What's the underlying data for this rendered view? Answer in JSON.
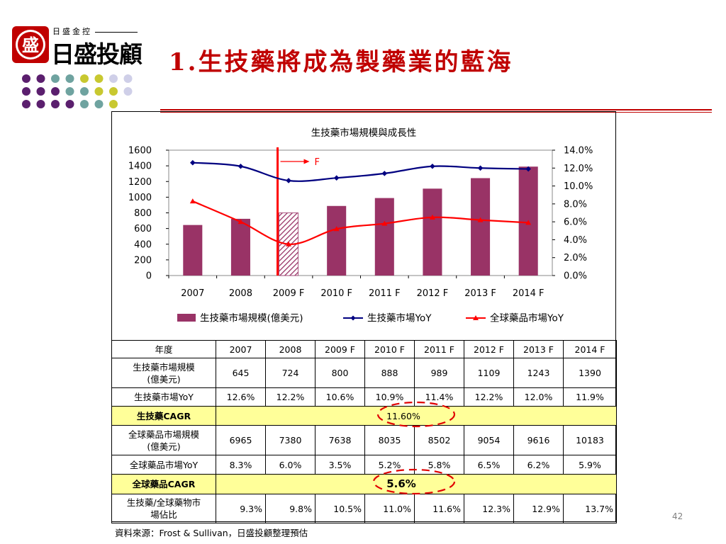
{
  "logo": {
    "small_text": "日盛金控",
    "big_text": "日盛投顧",
    "seal_char": "盛"
  },
  "colors": {
    "title_red": "#c00000",
    "bar": "#993366",
    "biotech_line": "#000080",
    "global_line": "#ff0000",
    "divider": "#ff0000",
    "cagr_fill": "#ffff99",
    "dot_purple": "#5b1f6e",
    "dot_teal": "#6fa3a0",
    "dot_yellow": "#c8c830",
    "dot_lavender": "#cfcfe8"
  },
  "title": "1.生技藥將成為製藥業的藍海",
  "chart_data": {
    "type": "bar",
    "title": "生技藥市場規模與成長性",
    "categories": [
      "2007",
      "2008",
      "2009 F",
      "2010 F",
      "2011 F",
      "2012 F",
      "2013 F",
      "2014 F"
    ],
    "series": [
      {
        "name": "生技藥市場規模(億美元)",
        "type": "bar",
        "axis": "left",
        "values": [
          645,
          724,
          800,
          888,
          989,
          1109,
          1243,
          1390
        ],
        "hatched_index": 2
      },
      {
        "name": "生技藥市場YoY",
        "type": "line",
        "axis": "right",
        "marker": "diamond",
        "values": [
          12.6,
          12.2,
          10.6,
          10.9,
          11.4,
          12.2,
          12.0,
          11.9
        ]
      },
      {
        "name": "全球藥品市場YoY",
        "type": "line",
        "axis": "right",
        "marker": "triangle",
        "values": [
          8.3,
          6.0,
          3.5,
          5.2,
          5.8,
          6.5,
          6.2,
          5.9
        ]
      }
    ],
    "ylim": [
      0,
      1600
    ],
    "yticks": [
      "0",
      "200",
      "400",
      "600",
      "800",
      "1000",
      "1200",
      "1400",
      "1600"
    ],
    "y2lim": [
      0,
      14
    ],
    "y2ticks": [
      "0.0%",
      "2.0%",
      "4.0%",
      "6.0%",
      "8.0%",
      "10.0%",
      "12.0%",
      "14.0%"
    ],
    "forecast_label": "F",
    "legend_position": "bottom",
    "grid": false
  },
  "table": {
    "header": [
      "年度",
      "2007",
      "2008",
      "2009 F",
      "2010 F",
      "2011 F",
      "2012 F",
      "2013 F",
      "2014 F"
    ],
    "rows": [
      {
        "label_l1": "生技藥市場規模",
        "label_l2": "(億美元)",
        "values": [
          "645",
          "724",
          "800",
          "888",
          "989",
          "1109",
          "1243",
          "1390"
        ]
      },
      {
        "label_l1": "生技藥市場YoY",
        "values": [
          "12.6%",
          "12.2%",
          "10.6%",
          "10.9%",
          "11.4%",
          "12.2%",
          "12.0%",
          "11.9%"
        ]
      },
      {
        "cagr": true,
        "label_l1": "生技藥CAGR",
        "value": "11.60%"
      },
      {
        "label_l1": "全球藥品市場規模",
        "label_l2": "(億美元)",
        "values": [
          "6965",
          "7380",
          "7638",
          "8035",
          "8502",
          "9054",
          "9616",
          "10183"
        ]
      },
      {
        "label_l1": "全球藥品市場YoY",
        "values": [
          "8.3%",
          "6.0%",
          "3.5%",
          "5.2%",
          "5.8%",
          "6.5%",
          "6.2%",
          "5.9%"
        ]
      },
      {
        "cagr": true,
        "label_l1": "全球藥品CAGR",
        "value": "5.6%"
      },
      {
        "label_l1": "生技藥/全球藥物市",
        "label_l2": "場佔比",
        "values": [
          "9.3%",
          "9.8%",
          "10.5%",
          "11.0%",
          "11.6%",
          "12.3%",
          "12.9%",
          "13.7%"
        ],
        "right_align": true
      }
    ]
  },
  "source": "資料來源：Frost & Sullivan，日盛投顧整理預估",
  "page_number": "42"
}
